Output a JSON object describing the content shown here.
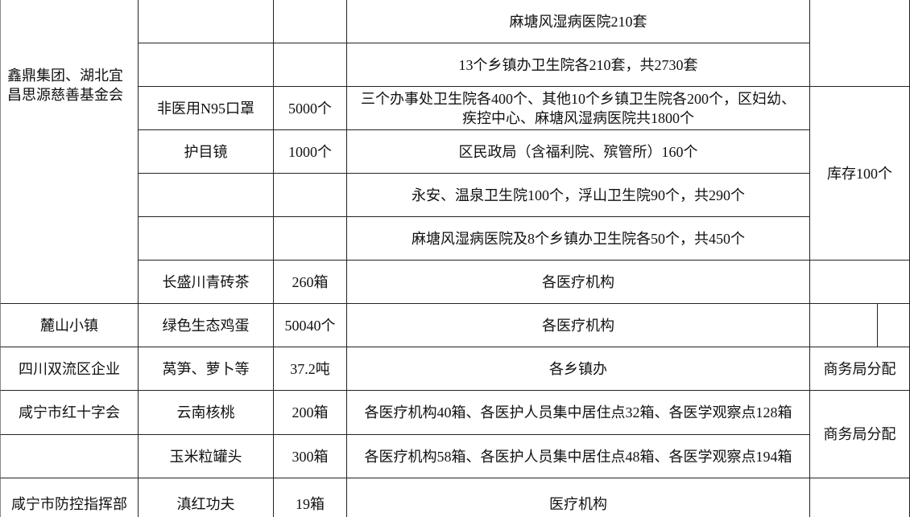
{
  "table": {
    "donor_group": "鑫鼎集团、湖北宜昌思源慈善基金会",
    "stock_note": "库存100个",
    "commerce_note": "商务局分配",
    "rows": [
      {
        "recipient": "麻塘风湿病医院210套"
      },
      {
        "recipient": "13个乡镇办卫生院各210套，共2730套"
      },
      {
        "item": "非医用N95口罩",
        "quantity": "5000个",
        "recipient": "三个办事处卫生院各400个、其他10个乡镇卫生院各200个，区妇幼、疾控中心、麻塘风湿病医院共1800个"
      },
      {
        "item": "护目镜",
        "quantity": "1000个",
        "recipient": "区民政局（含福利院、殡管所）160个"
      },
      {
        "recipient": "永安、温泉卫生院100个，浮山卫生院90个，共290个"
      },
      {
        "recipient": "麻塘风湿病医院及8个乡镇办卫生院各50个，共450个"
      },
      {
        "item": "长盛川青砖茶",
        "quantity": "260箱",
        "recipient": "各医疗机构"
      },
      {
        "donor": "麓山小镇",
        "item": "绿色生态鸡蛋",
        "quantity": "50040个",
        "recipient": "各医疗机构"
      },
      {
        "donor": "四川双流区企业",
        "item": "莴笋、萝卜等",
        "quantity": "37.2吨",
        "recipient": "各乡镇办",
        "note": "商务局分配"
      },
      {
        "donor": "咸宁市红十字会",
        "item": "云南核桃",
        "quantity": "200箱",
        "recipient": "各医疗机构40箱、各医护人员集中居住点32箱、各医学观察点128箱"
      },
      {
        "item": "玉米粒罐头",
        "quantity": "300箱",
        "recipient": "各医疗机构58箱、各医护人员集中居住点48箱、各医学观察点194箱"
      },
      {
        "donor": "咸宁市防控指挥部",
        "item": "滇红功夫",
        "quantity": "19箱",
        "recipient": "医疗机构"
      }
    ]
  }
}
